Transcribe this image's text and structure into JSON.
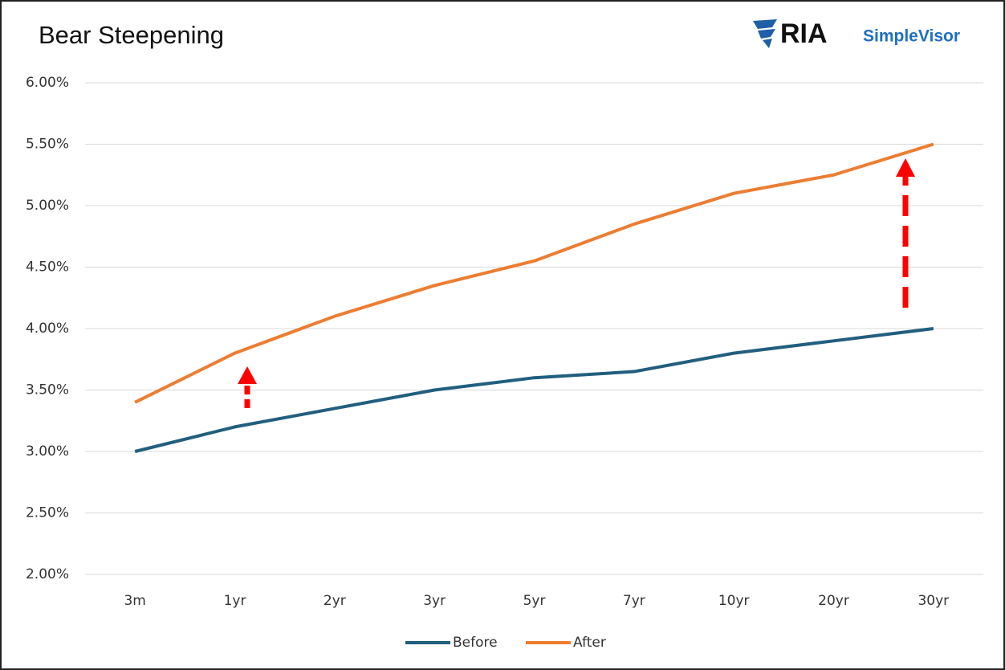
{
  "logo": {
    "name": "RIA",
    "product": "SimpleVisor"
  },
  "chart_data": {
    "type": "line",
    "title": "Bear Steepening",
    "categories": [
      "3m",
      "1yr",
      "2yr",
      "3yr",
      "5yr",
      "7yr",
      "10yr",
      "20yr",
      "30yr"
    ],
    "series": [
      {
        "name": "Before",
        "color": "#215f7e",
        "values": [
          3.0,
          3.2,
          3.35,
          3.5,
          3.6,
          3.65,
          3.8,
          3.9,
          4.0
        ]
      },
      {
        "name": "After",
        "color": "#ed7d31",
        "values": [
          3.4,
          3.8,
          4.1,
          4.35,
          4.55,
          4.85,
          5.1,
          5.25,
          5.5
        ]
      }
    ],
    "ylim": [
      2,
      6
    ],
    "yticks": [
      {
        "value": 2,
        "label": "2.00%"
      },
      {
        "value": 2.5,
        "label": "2.50%"
      },
      {
        "value": 3,
        "label": "3.00%"
      },
      {
        "value": 3.5,
        "label": "3.50%"
      },
      {
        "value": 4,
        "label": "4.00%"
      },
      {
        "value": 4.5,
        "label": "4.50%"
      },
      {
        "value": 5,
        "label": "5.00%"
      },
      {
        "value": 5.5,
        "label": "5.50%"
      },
      {
        "value": 6,
        "label": "6.00%"
      }
    ],
    "grid": true,
    "legend": "bottom"
  }
}
